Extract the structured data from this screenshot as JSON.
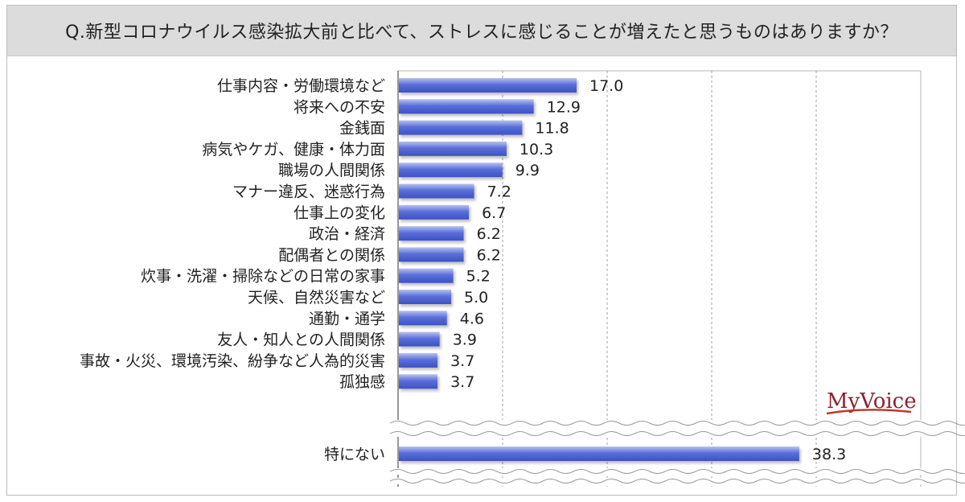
{
  "title": "Q.新型コロナウイルス感染拡大前と比べて、ストレスに感じることが増えたと思うものはありますか？",
  "logo": {
    "text": "MyVoice",
    "color": "#8c2330",
    "underline_color": "#c0392b"
  },
  "colors": {
    "bar": "#5b6fd9",
    "bar_dark": "#3d52c4",
    "bar_light": "#b8c2f2",
    "grid": "#a0a0a0",
    "axis": "#555555"
  },
  "chart_data": {
    "type": "bar",
    "orientation": "horizontal",
    "title": "Q.新型コロナウイルス感染拡大前と比べて、ストレスに感じることが増えたと思うものはありますか？",
    "xlim": [
      0,
      50
    ],
    "grid": true,
    "axis_break": true,
    "categories": [
      "仕事内容・労働環境など",
      "将来への不安",
      "金銭面",
      "病気やケガ、健康・体力面",
      "職場の人間関係",
      "マナー違反、迷惑行為",
      "仕事上の変化",
      "政治・経済",
      "配偶者との関係",
      "炊事・洗濯・掃除などの日常の家事",
      "天候、自然災害など",
      "通勤・通学",
      "友人・知人との人間関係",
      "事故・火災、環境汚染、紛争など人為的災害",
      "孤独感"
    ],
    "values": [
      17.0,
      12.9,
      11.8,
      10.3,
      9.9,
      7.2,
      6.7,
      6.2,
      6.2,
      5.2,
      5.0,
      4.6,
      3.9,
      3.7,
      3.7
    ],
    "value_labels": [
      "17.0",
      "12.9",
      "11.8",
      "10.3",
      "9.9",
      "7.2",
      "6.7",
      "6.2",
      "6.2",
      "5.2",
      "5.0",
      "4.6",
      "3.9",
      "3.7",
      "3.7"
    ],
    "extra": {
      "category": "特にない",
      "value": 38.3,
      "value_label": "38.3"
    }
  }
}
